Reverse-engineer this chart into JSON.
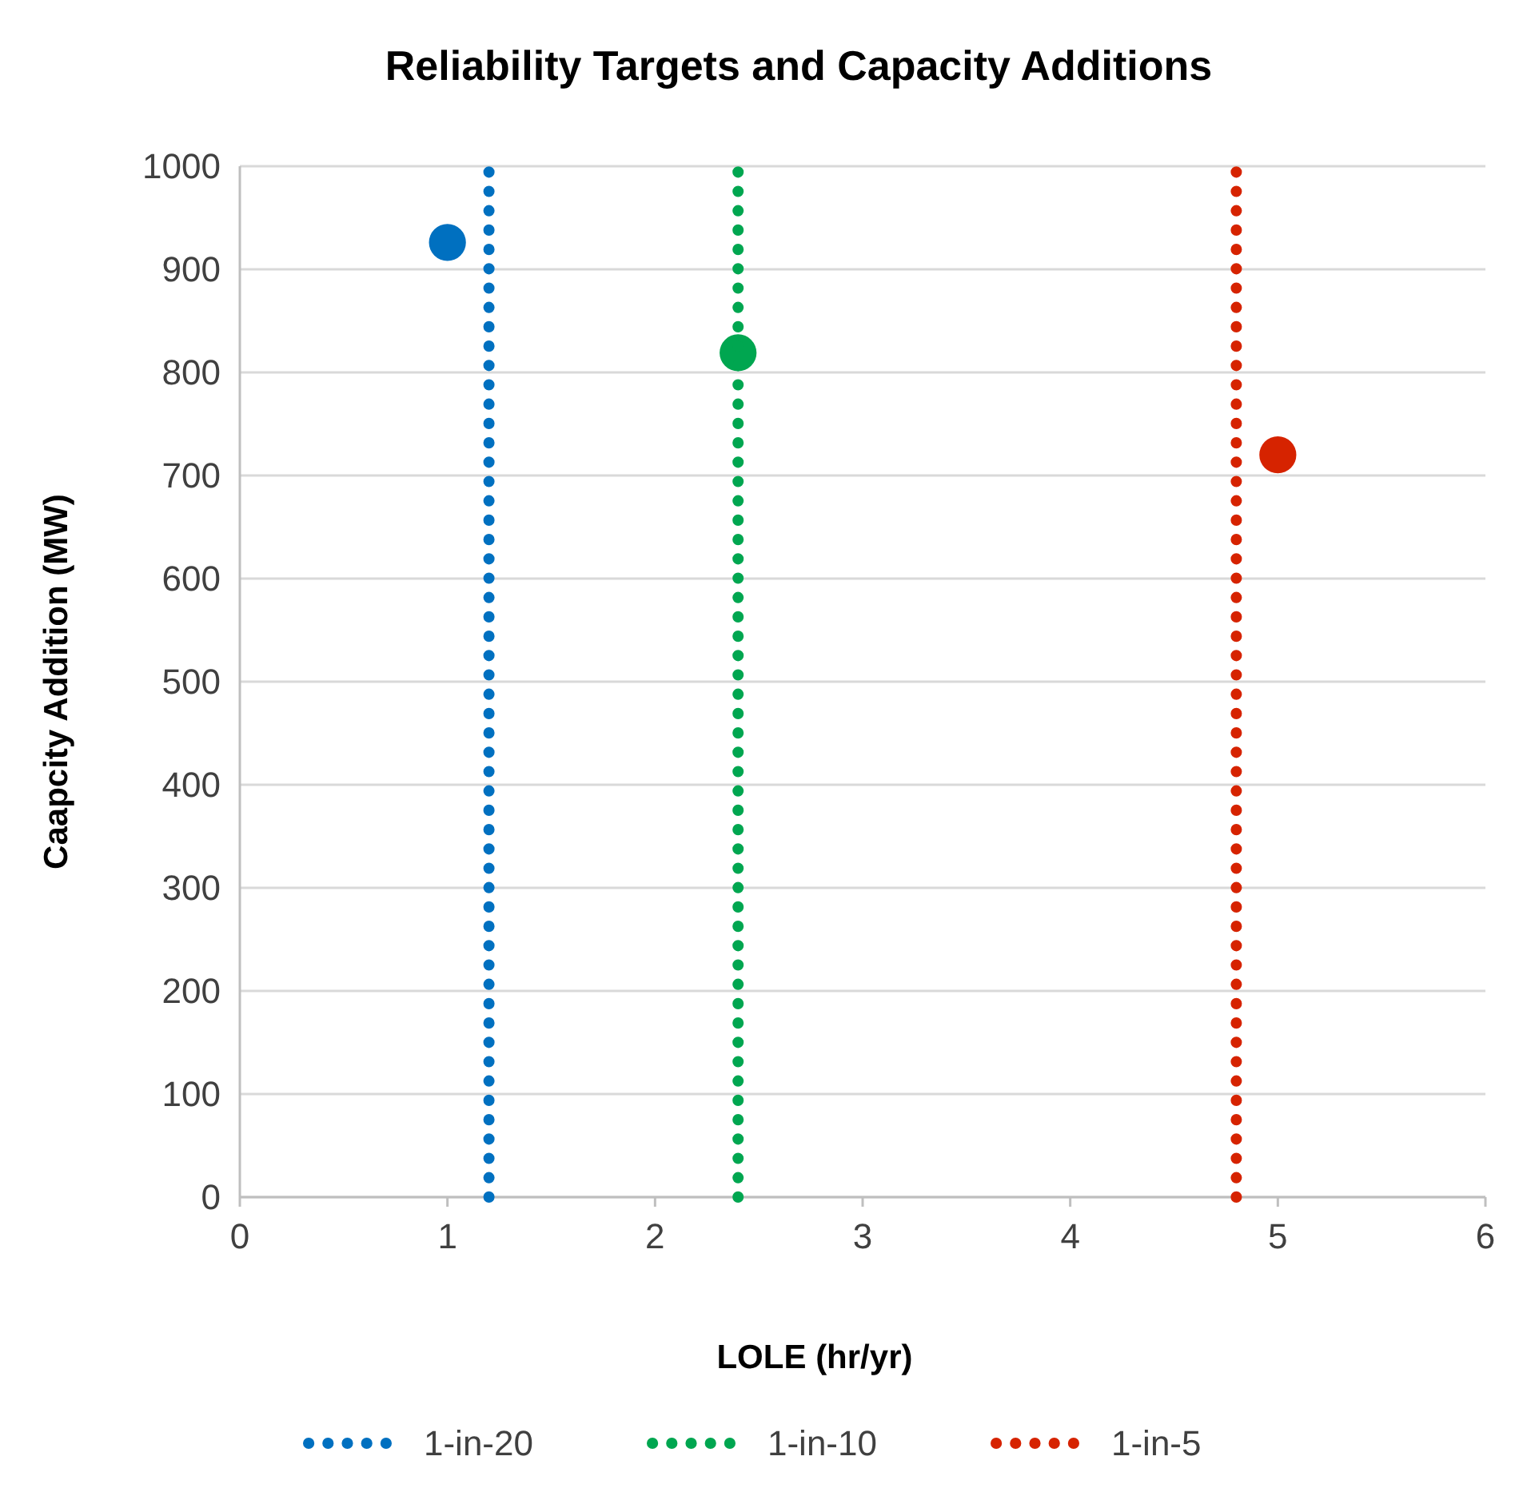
{
  "chart_data": {
    "type": "scatter",
    "title": "Reliability Targets and Capacity Additions",
    "xlabel": "LOLE (hr/yr)",
    "ylabel": "Caapcity Addition (MW)",
    "xlim": [
      0,
      6
    ],
    "xticks": [
      0,
      1,
      2,
      3,
      4,
      5,
      6
    ],
    "ylim": [
      0,
      1000
    ],
    "yticks": [
      0,
      100,
      200,
      300,
      400,
      500,
      600,
      700,
      800,
      900,
      1000
    ],
    "grid": "y",
    "legend": "bottom",
    "series": [
      {
        "color": "#0070c0",
        "marker": "circle",
        "x": [
          1
        ],
        "values": [
          926
        ]
      },
      {
        "color": "#00a650",
        "marker": "circle",
        "x": [
          2.4
        ],
        "values": [
          819
        ]
      },
      {
        "color": "#d62300",
        "marker": "circle",
        "x": [
          5
        ],
        "values": [
          720
        ]
      },
      {
        "type": "line",
        "name": "1-in-20",
        "color": "#0070c0",
        "line_style": "dotted",
        "x": [
          1.2,
          1.2
        ],
        "values": [
          0,
          1000
        ]
      },
      {
        "type": "line",
        "name": "1-in-10",
        "color": "#00a650",
        "line_style": "dotted",
        "x": [
          2.4,
          2.4
        ],
        "values": [
          0,
          1000
        ]
      },
      {
        "type": "line",
        "name": "1-in-5",
        "color": "#d62300",
        "line_style": "dotted",
        "x": [
          4.8,
          4.8
        ],
        "values": [
          0,
          1000
        ]
      }
    ]
  }
}
